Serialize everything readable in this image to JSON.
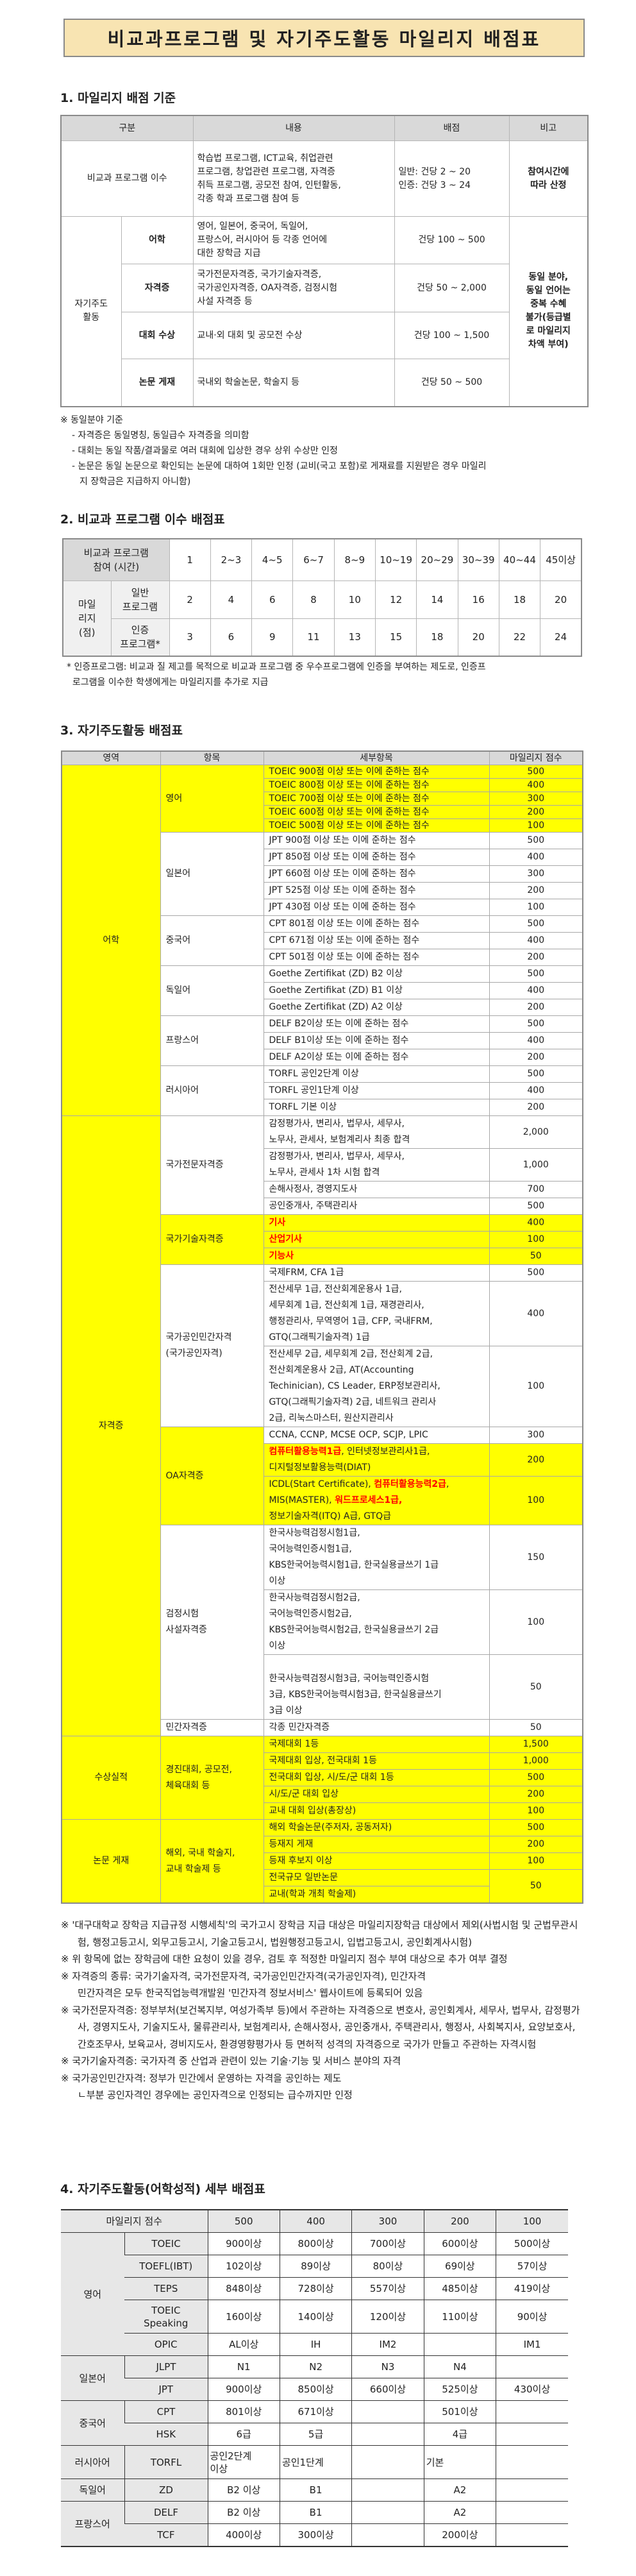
{
  "title": "비교과프로그램 및 자기주도활동 마일리지 배점표",
  "section1": {
    "heading": "1. 마일리지 배점 기준",
    "headers": [
      "구분",
      "내용",
      "배점",
      "비고"
    ],
    "program_row": {
      "category": "비교과 프로그램 이수",
      "content": "학습법 프로그램, ICT교육, 취업관련\n프로그램, 창업관련 프로그램, 자격증\n취득 프로그램, 공모전 참여, 인턴활동,\n각종 학과 프로그램 참여 등",
      "points": "일반: 건당 2 ~ 20\n인증: 건당 3 ~ 24",
      "remark": "참여시간에\n따라 산정"
    },
    "self_group": "자기주도\n활동",
    "self_rows": [
      {
        "sub": "어학",
        "content": "영어, 일본어, 중국어, 독일어,\n프랑스어, 러시아어 등 각종 언어에\n대한 장학금 지급",
        "points": "건당 100 ~ 500"
      },
      {
        "sub": "자격증",
        "content": "국가전문자격증, 국가기술자격증,\n국가공인자격증, OA자격증, 검정시험\n사설 자격증 등",
        "points": "건당 50 ~ 2,000"
      },
      {
        "sub": "대회 수상",
        "content": "교내·외 대회 및 공모전 수상",
        "points": "건당 100 ~ 1,500"
      },
      {
        "sub": "논문 게재",
        "content": "국내외 학술논문, 학술지 등",
        "points": "건당 50 ~ 500"
      }
    ],
    "self_remark": "동일 분야,\n동일 언어는\n중복 수혜\n불가(등급별\n로 마일리지\n차액 부여)",
    "notes": [
      "※ 동일분야 기준",
      "- 자격증은 동일명칭, 동일급수 자격증을 의미함",
      "- 대회는 동일 작품/결과물로 여러 대회에 입상한 경우 상위 수상만 인정",
      "- 논문은 동일 논문으로 확인되는 논문에 대하여 1회만 인정 (교비(국고 포함)로 게재료를 지원받은 경우 마일리\n지 장학금은 지급하지 아니함)"
    ]
  },
  "section2": {
    "heading": "2. 비교과 프로그램 이수 배점표",
    "corner": "비교과 프로그램\n참여 (시간)",
    "hours": [
      "1",
      "2~3",
      "4~5",
      "6~7",
      "8~9",
      "10~19",
      "20~29",
      "30~39",
      "40~44",
      "45이상"
    ],
    "mileage_label": "마일\n리지\n(점)",
    "general_label": "일반\n프로그램",
    "general": [
      "2",
      "4",
      "6",
      "8",
      "10",
      "12",
      "14",
      "16",
      "18",
      "20"
    ],
    "certified_label": "인증\n프로그램*",
    "certified": [
      "3",
      "6",
      "9",
      "11",
      "13",
      "15",
      "18",
      "20",
      "22",
      "24"
    ],
    "footnote": "* 인증프로그램: 비교과 질 제고를 목적으로 비교과 프로그램 중 우수프로그램에 인증을 부여하는 제도로, 인증프\n  로그램을 이수한 학생에게는 마일리지를 추가로 지급"
  },
  "section3": {
    "heading": "3. 자기주도활동 배점표",
    "headers": [
      "영역",
      "항목",
      "세부항목",
      "마일리지 점수"
    ],
    "areas": [
      {
        "name": "어학",
        "yellow": true,
        "items": [
          {
            "name": "영어",
            "yellow": true,
            "rows": [
              {
                "detail": [
                  {
                    "t": "TOEIC 900점 이상 또는 이에 준하는 점수"
                  }
                ],
                "score": "500",
                "yellow": true
              },
              {
                "detail": [
                  {
                    "t": "TOEIC 800점 이상 또는 이에 준하는 점수"
                  }
                ],
                "score": "400",
                "yellow": true
              },
              {
                "detail": [
                  {
                    "t": "TOEIC 700점 이상 또는 이에 준하는 점수"
                  }
                ],
                "score": "300",
                "yellow": true
              },
              {
                "detail": [
                  {
                    "t": "TOEIC 600점 이상 또는 이에 준하는 점수"
                  }
                ],
                "score": "200",
                "yellow": true
              },
              {
                "detail": [
                  {
                    "t": "TOEIC 500점 이상 또는 이에 준하는 점수"
                  }
                ],
                "score": "100",
                "yellow": true
              }
            ]
          },
          {
            "name": "일본어",
            "yellow": false,
            "rows": [
              {
                "detail": [
                  {
                    "t": "JPT 900점 이상 또는 이에 준하는 점수"
                  }
                ],
                "score": "500"
              },
              {
                "detail": [
                  {
                    "t": "JPT 850점 이상 또는 이에 준하는 점수"
                  }
                ],
                "score": "400"
              },
              {
                "detail": [
                  {
                    "t": "JPT 660점 이상 또는 이에 준하는 점수"
                  }
                ],
                "score": "300"
              },
              {
                "detail": [
                  {
                    "t": "JPT 525점 이상 또는 이에 준하는 점수"
                  }
                ],
                "score": "200"
              },
              {
                "detail": [
                  {
                    "t": "JPT 430점 이상 또는 이에 준하는 점수"
                  }
                ],
                "score": "100"
              }
            ]
          },
          {
            "name": "중국어",
            "yellow": false,
            "rows": [
              {
                "detail": [
                  {
                    "t": "CPT 801점 이상 또는 이에 준하는 점수"
                  }
                ],
                "score": "500"
              },
              {
                "detail": [
                  {
                    "t": "CPT 671점 이상 또는 이에 준하는 점수"
                  }
                ],
                "score": "400"
              },
              {
                "detail": [
                  {
                    "t": "CPT 501점 이상 또는 이에 준하는 점수"
                  }
                ],
                "score": "200"
              }
            ]
          },
          {
            "name": "독일어",
            "yellow": false,
            "rows": [
              {
                "detail": [
                  {
                    "t": "Goethe Zertifikat (ZD) B2 이상"
                  }
                ],
                "score": "500"
              },
              {
                "detail": [
                  {
                    "t": "Goethe Zertifikat (ZD) B1 이상"
                  }
                ],
                "score": "400"
              },
              {
                "detail": [
                  {
                    "t": "Goethe Zertifikat (ZD) A2 이상"
                  }
                ],
                "score": "200"
              }
            ]
          },
          {
            "name": "프랑스어",
            "yellow": false,
            "rows": [
              {
                "detail": [
                  {
                    "t": "DELF B2이상 또는 이에 준하는 점수"
                  }
                ],
                "score": "500"
              },
              {
                "detail": [
                  {
                    "t": "DELF B1이상 또는 이에 준하는 점수"
                  }
                ],
                "score": "400"
              },
              {
                "detail": [
                  {
                    "t": "DELF A2이상 또는 이에 준하는 점수"
                  }
                ],
                "score": "200"
              }
            ]
          },
          {
            "name": "러시아어",
            "yellow": false,
            "rows": [
              {
                "detail": [
                  {
                    "t": "TORFL 공인2단계 이상"
                  }
                ],
                "score": "500"
              },
              {
                "detail": [
                  {
                    "t": "TORFL 공인1단계 이상"
                  }
                ],
                "score": "400"
              },
              {
                "detail": [
                  {
                    "t": "TORFL 기본 이상"
                  }
                ],
                "score": "200"
              }
            ]
          }
        ]
      },
      {
        "name": "자격증",
        "yellow": true,
        "items": [
          {
            "name": "국가전문자격증",
            "yellow": false,
            "rows": [
              {
                "detail": [
                  {
                    "t": "감정평가사, 변리사, 법무사, 세무사,\n노무사, 관세사, 보험계리사 최종 합격"
                  }
                ],
                "score": "2,000"
              },
              {
                "detail": [
                  {
                    "t": "감정평가사, 변리사, 법무사, 세무사,\n노무사, 관세사 1차 시험 합격"
                  }
                ],
                "score": "1,000"
              },
              {
                "detail": [
                  {
                    "t": "손해사정사, 경영지도사"
                  }
                ],
                "score": "700"
              },
              {
                "detail": [
                  {
                    "t": "공인중개사, 주택관리사"
                  }
                ],
                "score": "500"
              }
            ]
          },
          {
            "name": "국가기술자격증",
            "yellow": true,
            "rows": [
              {
                "detail": [
                  {
                    "t": "기사",
                    "red": true
                  }
                ],
                "score": "400",
                "yellow": true
              },
              {
                "detail": [
                  {
                    "t": "산업기사",
                    "red": true
                  }
                ],
                "score": "100",
                "yellow": true
              },
              {
                "detail": [
                  {
                    "t": "기능사",
                    "red": true
                  }
                ],
                "score": "50",
                "yellow": true
              }
            ]
          },
          {
            "name": "국가공인민간자격\n(국가공인자격)",
            "yellow": false,
            "rows": [
              {
                "detail": [
                  {
                    "t": "국제FRM, CFA 1급"
                  }
                ],
                "score": "500"
              },
              {
                "detail": [
                  {
                    "t": "전산세무 1급, 전산회계운용사 1급,\n세무회계 1급, 전산회계 1급, 재경관리사,\n행정관리사, 무역영어 1급, CFP, 국내FRM,\nGTQ(그래픽기술자격) 1급"
                  }
                ],
                "score": "400"
              },
              {
                "detail": [
                  {
                    "t": "전산세무 2급, 세무회계 2급, 전산회계 2급,\n전산회계운용사 2급, AT(Accounting\nTechinician), CS Leader, ERP정보관리사,\nGTQ(그래픽기술자격) 2급, 네트워크 관리사\n2급, 리눅스마스터, 원산지관리사"
                  }
                ],
                "score": "100"
              }
            ]
          },
          {
            "name": "OA자격증",
            "yellow": true,
            "rows": [
              {
                "detail": [
                  {
                    "t": "CCNA, CCNP, MCSE OCP, SCJP, LPIC"
                  }
                ],
                "score": "300"
              },
              {
                "detail": [
                  {
                    "t": "컴퓨터활용능력1급",
                    "red": true
                  },
                  {
                    "t": ", 인터넷정보관리사1급,\n디지털정보활용능력(DIAT)"
                  }
                ],
                "score": "200",
                "yellow": true
              },
              {
                "detail": [
                  {
                    "t": "ICDL(Start Certificate), "
                  },
                  {
                    "t": "컴퓨터활용능력2급",
                    "red": true
                  },
                  {
                    "t": ",\nMIS(MASTER), "
                  },
                  {
                    "t": "워드프로세스1급,",
                    "red": true
                  },
                  {
                    "t": "\n정보기술자격(ITQ) A급, GTQ급"
                  }
                ],
                "score": "100",
                "yellow": true
              }
            ]
          },
          {
            "name": "검정시험\n사설자격증",
            "yellow": false,
            "rows": [
              {
                "detail": [
                  {
                    "t": "한국사능력검정시험1급,\n국어능력인증시험1급,\nKBS한국어능력시험1급, 한국실용글쓰기 1급\n이상"
                  }
                ],
                "score": "150"
              },
              {
                "detail": [
                  {
                    "t": "한국사능력검정시험2급,\n국어능력인증시험2급,\nKBS한국어능력시험2급, 한국실용글쓰기 2급\n이상"
                  }
                ],
                "score": "100"
              },
              {
                "detail": [
                  {
                    "t": "\n한국사능력검정시험3급, 국어능력인증시험\n3급, KBS한국어능력시험3급, 한국실용글쓰기\n3급 이상"
                  }
                ],
                "score": "50"
              }
            ]
          },
          {
            "name": "민간자격증",
            "yellow": false,
            "rows": [
              {
                "detail": [
                  {
                    "t": "각종 민간자격증"
                  }
                ],
                "score": "50"
              }
            ]
          }
        ]
      },
      {
        "name": "수상실적",
        "yellow": true,
        "items": [
          {
            "name": "경진대회, 공모전,\n체육대회 등",
            "yellow": true,
            "rows": [
              {
                "detail": [
                  {
                    "t": "국제대회 1등"
                  }
                ],
                "score": "1,500",
                "yellow": true
              },
              {
                "detail": [
                  {
                    "t": "국제대회 입상, 전국대회 1등"
                  }
                ],
                "score": "1,000",
                "yellow": true
              },
              {
                "detail": [
                  {
                    "t": "전국대회 입상, 시/도/군 대회 1등"
                  }
                ],
                "score": "500",
                "yellow": true
              },
              {
                "detail": [
                  {
                    "t": "시/도/군 대회 입상"
                  }
                ],
                "score": "200",
                "yellow": true
              },
              {
                "detail": [
                  {
                    "t": "교내 대회 입상(총장상)"
                  }
                ],
                "score": "100",
                "yellow": true
              }
            ]
          }
        ]
      },
      {
        "name": "논문 게재",
        "yellow": true,
        "items": [
          {
            "name": "해외, 국내 학술지,\n교내 학술제 등",
            "yellow": true,
            "rows": [
              {
                "detail": [
                  {
                    "t": "해외 학술논문(주저자, 공동저자)"
                  }
                ],
                "score": "500",
                "yellow": true
              },
              {
                "detail": [
                  {
                    "t": "등재지 게재"
                  }
                ],
                "score": "200",
                "yellow": true
              },
              {
                "detail": [
                  {
                    "t": "등재 후보지 이상"
                  }
                ],
                "score": "100",
                "yellow": true
              },
              {
                "detail": [
                  {
                    "t": "전국규모 일반논문"
                  }
                ],
                "score": "50",
                "yellow": true
              },
              {
                "detail": [
                  {
                    "t": "교내(학과 개최 학술제)"
                  }
                ],
                "yellow": true
              }
            ]
          }
        ]
      }
    ],
    "notes": [
      "※ '대구대학교 장학금 지급규정 시행세칙'의 국가고시 장학금 지급 대상은 마일리지장학금 대상에서 제외(사법시험 및 군법무관시험, 행정고등고시, 외무고등고시, 기술고등고시, 법원행정고등고시, 입법고등고시, 공인회계사시험)",
      "※ 위 항목에 없는 장학금에 대한 요청이 있을 경우, 검토 후 적정한 마일리지 점수 부여 대상으로 추가 여부 결정",
      "※ 자격증의 종류: 국가기술자격, 국가전문자격, 국가공인민간자격(국가공인자격), 민간자격\n민간자격은 모두 한국직업능력개발원 '민간자격 정보서비스' 웹사이트에 등록되어 있음",
      "※ 국가전문자격증: 정부부처(보건복지부, 여성가족부 등)에서 주관하는 자격증으로 변호사, 공인회계사, 세무사, 법무사, 감정평가사, 경영지도사, 기술지도사, 물류관리사, 보험계리사, 손해사정사, 공인중개사, 주택관리사, 행정사, 사회복지사, 요양보호사, 간호조무사, 보육교사, 경비지도사, 환경영향평가사 등 면허적 성격의 자격증으로 국가가 만들고 주관하는 자격시험",
      "※ 국가기술자격증: 국가자격 중 산업과 관련이 있는 기술·기능 및 서비스 분야의 자격",
      "※ 국가공인민간자격: 정부가 민간에서 운영하는 자격을 공인하는 제도\n ㄴ부분 공인자격인 경우에는 공인자격으로 인정되는 급수까지만 인정"
    ]
  },
  "section4": {
    "heading": "4. 자기주도활동(어학성적) 세부 배점표",
    "corner": "마일리지 점수",
    "scores": [
      "500",
      "400",
      "300",
      "200",
      "100"
    ],
    "groups": [
      {
        "lang": "영어",
        "tests": [
          {
            "name": "TOEIC",
            "values": [
              "900이상",
              "800이상",
              "700이상",
              "600이상",
              "500이상"
            ]
          },
          {
            "name": "TOEFL(IBT)",
            "values": [
              "102이상",
              "89이상",
              "80이상",
              "69이상",
              "57이상"
            ]
          },
          {
            "name": "TEPS",
            "values": [
              "848이상",
              "728이상",
              "557이상",
              "485이상",
              "419이상"
            ]
          },
          {
            "name": "TOEIC\nSpeaking",
            "values": [
              "160이상",
              "140이상",
              "120이상",
              "110이상",
              "90이상"
            ]
          },
          {
            "name": "OPIC",
            "values": [
              "AL이상",
              "IH",
              "IM2",
              "",
              "IM1"
            ]
          }
        ]
      },
      {
        "lang": "일본어",
        "tests": [
          {
            "name": "JLPT",
            "values": [
              "N1",
              "N2",
              "N3",
              "N4",
              ""
            ]
          },
          {
            "name": "JPT",
            "values": [
              "900이상",
              "850이상",
              "660이상",
              "525이상",
              "430이상"
            ]
          }
        ]
      },
      {
        "lang": "중국어",
        "tests": [
          {
            "name": "CPT",
            "values": [
              "801이상",
              "671이상",
              "",
              "501이상",
              ""
            ]
          },
          {
            "name": "HSK",
            "values": [
              "6급",
              "5급",
              "",
              "4급",
              ""
            ]
          }
        ]
      },
      {
        "lang": "러시아어",
        "tests": [
          {
            "name": "TORFL",
            "values": [
              "공인2단계\n이상",
              "공인1단계",
              "",
              "기본",
              ""
            ]
          }
        ]
      },
      {
        "lang": "독일어",
        "tests": [
          {
            "name": "ZD",
            "values": [
              "B2 이상",
              "B1",
              "",
              "A2",
              ""
            ]
          }
        ]
      },
      {
        "lang": "프랑스어",
        "tests": [
          {
            "name": "DELF",
            "values": [
              "B2 이상",
              "B1",
              "",
              "A2",
              ""
            ]
          },
          {
            "name": "TCF",
            "values": [
              "400이상",
              "300이상",
              "",
              "200이상",
              ""
            ]
          }
        ]
      }
    ]
  },
  "colors": {
    "title_bg": "#f8e4b2",
    "header_gray": "#d9d9d9",
    "highlight": "#ffff00",
    "emphasis_red": "#ff0000"
  }
}
